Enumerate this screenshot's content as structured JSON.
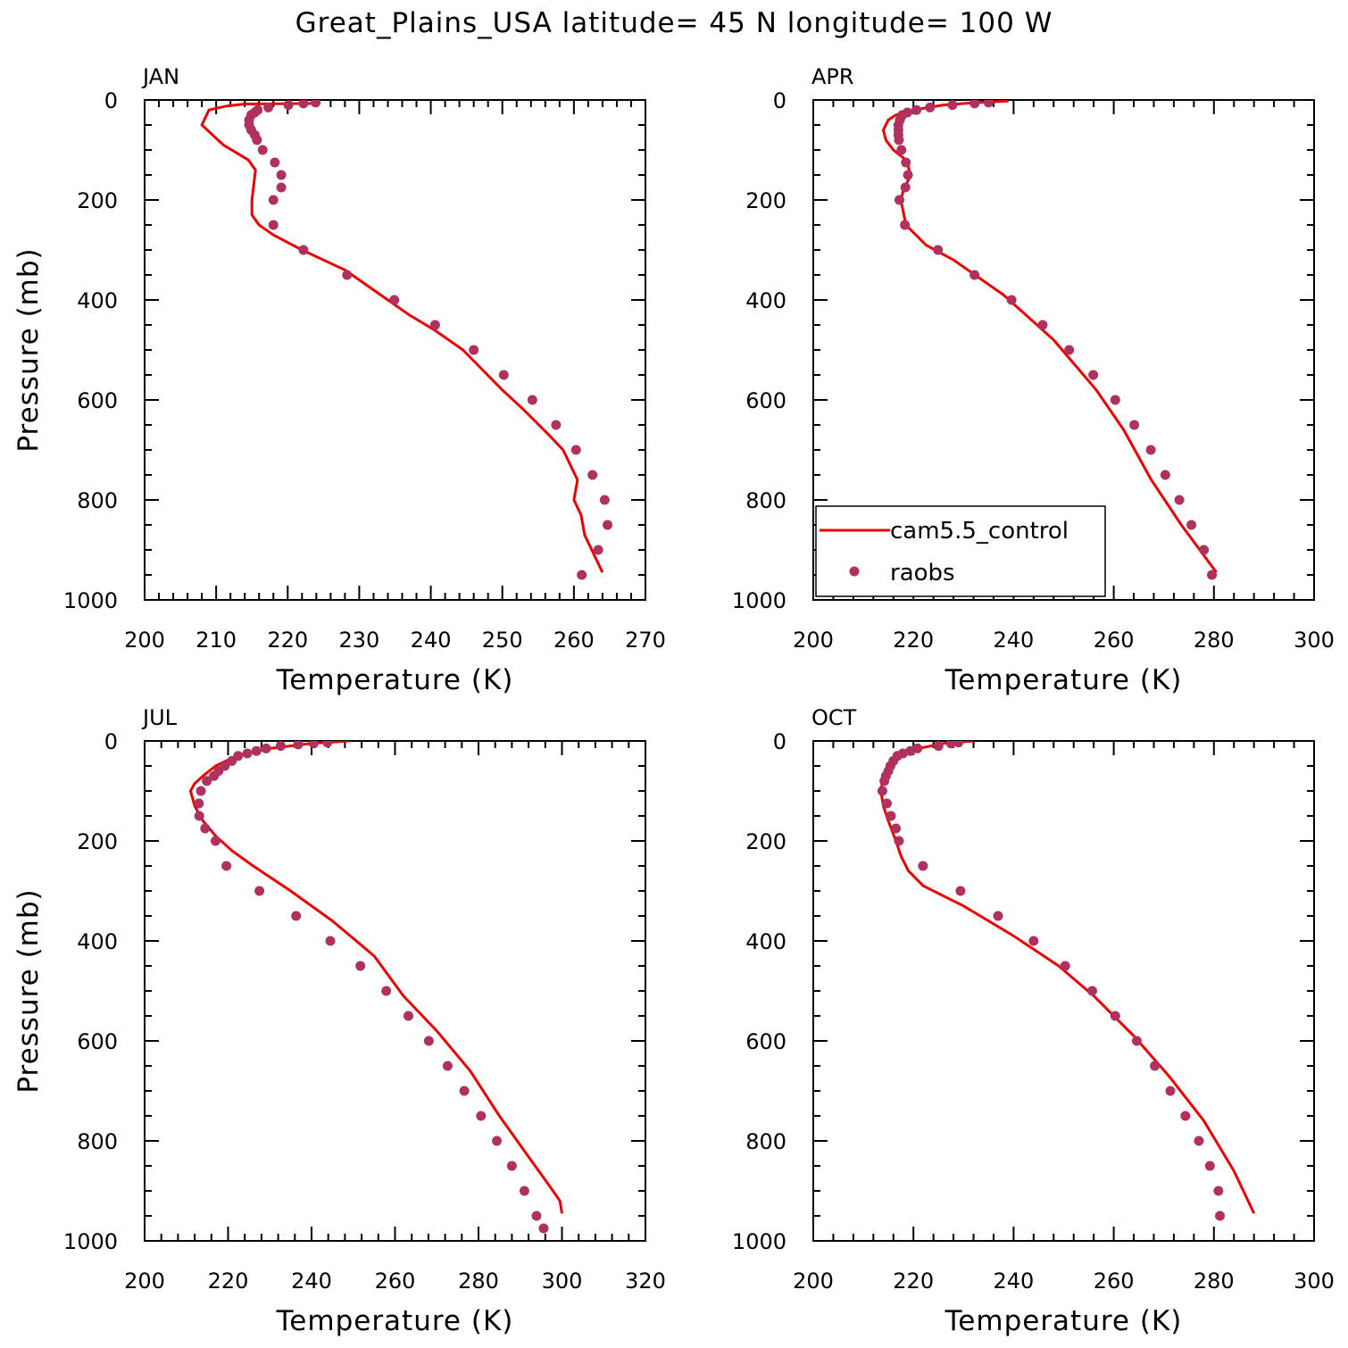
{
  "title": "Great_Plains_USA  latitude= 45 N longitude= 100 W",
  "colors": {
    "model": "#ee0000",
    "obs": "#b03060",
    "axis": "#000000"
  },
  "legend": {
    "model_label": "cam5.5_control",
    "obs_label": "raobs",
    "placement": "lower-left of APR panel"
  },
  "chart_data": [
    {
      "type": "line",
      "panel": "JAN",
      "title": "JAN",
      "xlabel": "Temperature (K)",
      "ylabel": "Pressure (mb)",
      "xlim": [
        200,
        270
      ],
      "ylim": [
        1000,
        0
      ],
      "y_inverted": true,
      "xticks": [
        200,
        210,
        220,
        230,
        240,
        250,
        260,
        270
      ],
      "yticks": [
        0,
        200,
        400,
        600,
        800,
        1000
      ],
      "series": [
        {
          "name": "cam5.5_control",
          "style": "line",
          "x": [
            224.0,
            214.0,
            211.5,
            209.0,
            208.0,
            211.0,
            214.5,
            215.5,
            215.0,
            215.0,
            216.0,
            218.0,
            222.0,
            228.0,
            234.0,
            237.0,
            240.5,
            244.5,
            250.0,
            253.0,
            256.5,
            258.5,
            260.5,
            260.0,
            261.0,
            261.5,
            262.5,
            264.0
          ],
          "y": [
            7,
            8,
            12,
            20,
            50,
            90,
            120,
            140,
            200,
            230,
            250,
            270,
            300,
            340,
            400,
            430,
            460,
            500,
            580,
            620,
            670,
            700,
            760,
            800,
            830,
            870,
            900,
            945
          ]
        },
        {
          "name": "raobs",
          "style": "points",
          "x": [
            223.9,
            222.2,
            220.1,
            217.3,
            215.8,
            215.4,
            214.9,
            214.6,
            214.6,
            214.9,
            215.4,
            215.7,
            216.5,
            218.2,
            219.1,
            219.1,
            218.0,
            218.0,
            222.2,
            228.3,
            234.9,
            240.6,
            246.0,
            250.2,
            254.2,
            257.5,
            260.3,
            262.6,
            264.3,
            264.7,
            263.4,
            261.1
          ],
          "y": [
            5,
            7,
            10,
            15,
            20,
            25,
            30,
            40,
            50,
            60,
            70,
            80,
            100,
            125,
            150,
            175,
            200,
            250,
            300,
            350,
            400,
            450,
            500,
            550,
            600,
            650,
            700,
            750,
            800,
            850,
            900,
            950
          ]
        }
      ]
    },
    {
      "type": "line",
      "panel": "APR",
      "title": "APR",
      "xlabel": "Temperature (K)",
      "ylabel": "",
      "xlim": [
        200,
        300
      ],
      "ylim": [
        1000,
        0
      ],
      "y_inverted": true,
      "xticks": [
        200,
        220,
        240,
        260,
        280,
        300
      ],
      "yticks": [
        0,
        200,
        400,
        600,
        800,
        1000
      ],
      "show_legend": true,
      "series": [
        {
          "name": "cam5.5_control",
          "style": "line",
          "x": [
            239.0,
            233.0,
            226.0,
            220.0,
            216.5,
            215.0,
            214.0,
            214.5,
            216.0,
            218.5,
            219.5,
            218.0,
            217.5,
            218.5,
            220.5,
            222.5,
            228.0,
            238.0,
            248.0,
            256.5,
            262.0,
            267.5,
            273.5,
            280.5
          ],
          "y": [
            2,
            5,
            10,
            20,
            30,
            40,
            60,
            80,
            100,
            120,
            150,
            180,
            200,
            250,
            270,
            290,
            320,
            390,
            480,
            580,
            660,
            760,
            850,
            945
          ]
        },
        {
          "name": "raobs",
          "style": "points",
          "x": [
            235.0,
            232.2,
            227.8,
            223.3,
            220.6,
            218.8,
            217.8,
            217.3,
            217.0,
            217.0,
            217.0,
            217.1,
            217.6,
            218.5,
            218.9,
            218.4,
            217.2,
            218.3,
            224.9,
            232.2,
            239.6,
            245.8,
            251.1,
            255.9,
            260.3,
            264.1,
            267.4,
            270.3,
            273.1,
            275.5,
            278.0,
            279.6
          ],
          "y": [
            5,
            7,
            10,
            15,
            20,
            25,
            30,
            40,
            50,
            60,
            70,
            80,
            100,
            125,
            150,
            175,
            200,
            250,
            300,
            350,
            400,
            450,
            500,
            550,
            600,
            650,
            700,
            750,
            800,
            850,
            900,
            950
          ]
        }
      ]
    },
    {
      "type": "line",
      "panel": "JUL",
      "title": "JUL",
      "xlabel": "Temperature (K)",
      "ylabel": "Pressure (mb)",
      "xlim": [
        200,
        320
      ],
      "ylim": [
        1000,
        0
      ],
      "y_inverted": true,
      "xticks": [
        200,
        220,
        240,
        260,
        280,
        300,
        320
      ],
      "yticks": [
        0,
        200,
        400,
        600,
        800,
        1000
      ],
      "series": [
        {
          "name": "cam5.5_control",
          "style": "line",
          "x": [
            249.0,
            240.0,
            230.0,
            222.0,
            217.0,
            214.0,
            212.0,
            211.0,
            212.0,
            214.0,
            217.0,
            221.0,
            226.0,
            235.0,
            245.0,
            255.0,
            262.0,
            270.0,
            278.0,
            285.0,
            291.0,
            297.0,
            299.5,
            300.0
          ],
          "y": [
            0,
            5,
            15,
            30,
            50,
            70,
            85,
            100,
            130,
            160,
            190,
            220,
            250,
            300,
            360,
            430,
            510,
            580,
            660,
            750,
            820,
            890,
            920,
            945
          ]
        },
        {
          "name": "raobs",
          "style": "points",
          "x": [
            243.8,
            240.5,
            236.8,
            232.6,
            229.1,
            226.8,
            224.6,
            222.4,
            220.9,
            219.2,
            217.7,
            216.6,
            214.9,
            213.5,
            213.0,
            213.1,
            214.5,
            217.0,
            219.6,
            227.5,
            236.3,
            244.5,
            251.7,
            257.9,
            263.2,
            268.1,
            272.6,
            276.6,
            280.6,
            284.4,
            288.0,
            291.0,
            293.9,
            295.6
          ],
          "y": [
            3,
            5,
            7,
            10,
            15,
            20,
            25,
            30,
            40,
            50,
            60,
            70,
            80,
            100,
            125,
            150,
            175,
            200,
            250,
            300,
            350,
            400,
            450,
            500,
            550,
            600,
            650,
            700,
            750,
            800,
            850,
            900,
            950,
            975
          ]
        }
      ]
    },
    {
      "type": "line",
      "panel": "OCT",
      "title": "OCT",
      "xlabel": "Temperature (K)",
      "ylabel": "",
      "xlim": [
        200,
        300
      ],
      "ylim": [
        1000,
        0
      ],
      "y_inverted": true,
      "xticks": [
        200,
        220,
        240,
        260,
        280,
        300
      ],
      "yticks": [
        0,
        200,
        400,
        600,
        800,
        1000
      ],
      "series": [
        {
          "name": "cam5.5_control",
          "style": "line",
          "x": [
            232.0,
            226.0,
            221.0,
            217.5,
            215.5,
            214.0,
            213.5,
            214.0,
            215.0,
            216.5,
            217.5,
            219.0,
            222.0,
            230.0,
            240.0,
            249.0,
            256.0,
            264.0,
            271.0,
            278.0,
            284.0,
            288.0
          ],
          "y": [
            0,
            5,
            15,
            30,
            50,
            70,
            100,
            130,
            160,
            200,
            230,
            260,
            290,
            330,
            390,
            450,
            510,
            590,
            670,
            760,
            860,
            945
          ]
        },
        {
          "name": "raobs",
          "style": "points",
          "x": [
            229.0,
            227.5,
            225.0,
            220.8,
            219.4,
            217.9,
            216.8,
            216.0,
            215.4,
            215.0,
            214.5,
            214.2,
            213.8,
            214.7,
            215.5,
            216.5,
            217.1,
            221.9,
            229.4,
            236.9,
            244.0,
            250.3,
            255.7,
            260.3,
            264.6,
            268.2,
            271.3,
            274.3,
            277.0,
            279.2,
            280.9,
            281.2
          ],
          "y": [
            3,
            5,
            10,
            15,
            20,
            25,
            30,
            40,
            50,
            60,
            70,
            80,
            100,
            125,
            150,
            175,
            200,
            250,
            300,
            350,
            400,
            450,
            500,
            550,
            600,
            650,
            700,
            750,
            800,
            850,
            900,
            950
          ]
        }
      ]
    }
  ]
}
